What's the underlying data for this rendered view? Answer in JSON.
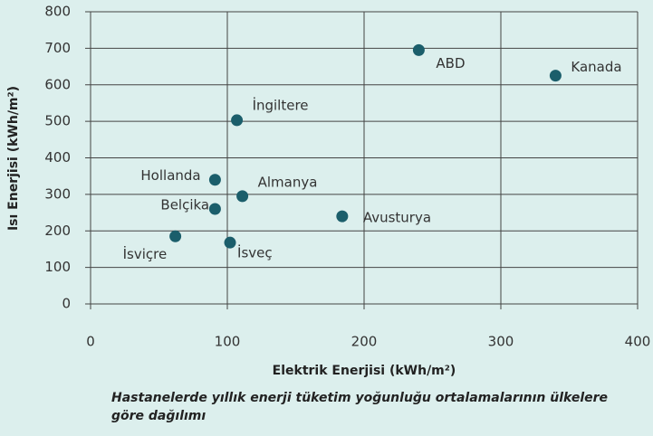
{
  "chart_data": {
    "type": "scatter",
    "labels": [
      "İsviçre",
      "Belçika",
      "Hollanda",
      "İsveç",
      "Almanya",
      "İngiltere",
      "Avusturya",
      "ABD",
      "Kanada"
    ],
    "x": [
      62,
      91,
      91,
      102,
      111,
      107,
      184,
      240,
      340
    ],
    "values": [
      185,
      260,
      340,
      168,
      295,
      503,
      240,
      695,
      625
    ],
    "color": "#1b5e6b",
    "xlim": [
      0,
      400
    ],
    "ylim": [
      0,
      800
    ],
    "xticks": [
      0,
      100,
      200,
      300,
      400
    ],
    "yticks": [
      0,
      100,
      200,
      300,
      400,
      500,
      600,
      700,
      800
    ],
    "x_label": "Elektrik Enerjisi (kWh/m²)",
    "y_label": "Isı Enerjisi (kWh/m²)",
    "caption": "Hastanelerde yıllık enerji tüketim yoğunluğu ortalamalarının ülkelere göre dağılımı",
    "grid": true
  }
}
